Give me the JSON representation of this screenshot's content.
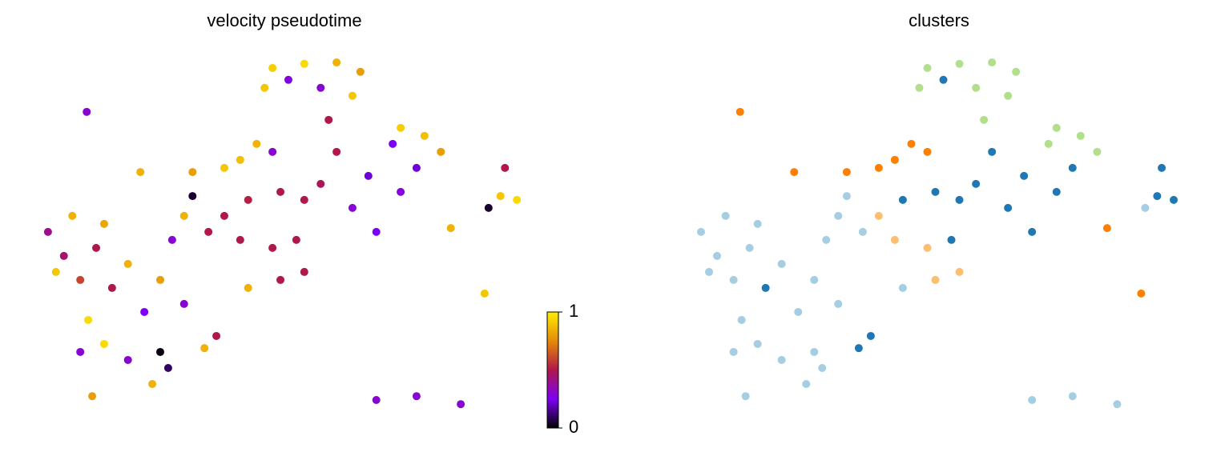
{
  "chart_data": [
    {
      "type": "scatter",
      "title": "velocity pseudotime",
      "x": [
        47.6,
        54.0,
        60.5,
        65.3,
        46.0,
        63.7,
        57.3,
        50.8,
        73.4,
        78.2,
        81.5,
        71.8,
        76.6,
        73.4,
        68.5,
        63.7,
        66.9,
        58.9,
        60.5,
        57.3,
        54.0,
        49.2,
        42.7,
        37.9,
        41.1,
        47.6,
        52.4,
        49.2,
        54.0,
        34.7,
        44.4,
        41.1,
        47.6,
        37.9,
        94.4,
        96.8,
        93.5,
        91.1,
        10.2,
        21.0,
        31.5,
        2.4,
        7.3,
        13.7,
        5.6,
        12.1,
        18.5,
        25.0,
        29.8,
        21.8,
        15.3,
        8.9,
        4.0,
        10.5,
        13.7,
        8.9,
        18.5,
        26.6,
        23.4,
        11.3,
        29.8,
        27.4,
        36.3,
        33.9,
        42.7,
        68.5,
        76.6,
        85.5,
        90.3,
        83.5,
        31.5,
        25.0
      ],
      "y": [
        97.7,
        98.9,
        99.3,
        96.6,
        92.0,
        89.7,
        92.0,
        94.3,
        80.5,
        78.2,
        73.6,
        75.9,
        69.0,
        62.1,
        50.6,
        57.5,
        66.7,
        82.8,
        73.6,
        64.4,
        59.8,
        62.1,
        59.8,
        55.2,
        48.3,
        46.0,
        48.3,
        36.8,
        39.1,
        50.6,
        75.9,
        71.3,
        73.6,
        69.0,
        69.0,
        59.8,
        60.9,
        57.5,
        85.1,
        67.8,
        67.8,
        50.6,
        55.2,
        52.9,
        43.7,
        46.0,
        41.4,
        36.8,
        29.9,
        27.6,
        34.5,
        36.8,
        39.1,
        25.3,
        18.4,
        16.1,
        13.8,
        11.5,
        6.9,
        3.4,
        55.2,
        48.3,
        20.7,
        17.2,
        34.5,
        2.3,
        3.4,
        1.1,
        32.9,
        51.7,
        60.9,
        16.1
      ],
      "values": [
        0.92,
        0.95,
        0.85,
        0.8,
        0.9,
        0.9,
        0.3,
        0.28,
        0.92,
        0.88,
        0.8,
        0.25,
        0.22,
        0.28,
        0.25,
        0.3,
        0.22,
        0.5,
        0.5,
        0.48,
        0.5,
        0.5,
        0.52,
        0.5,
        0.5,
        0.5,
        0.5,
        0.5,
        0.5,
        0.5,
        0.85,
        0.88,
        0.3,
        0.9,
        0.5,
        0.95,
        0.9,
        0.05,
        0.3,
        0.85,
        0.8,
        0.4,
        0.85,
        0.82,
        0.45,
        0.5,
        0.85,
        0.8,
        0.3,
        0.25,
        0.5,
        0.6,
        0.9,
        0.95,
        0.95,
        0.3,
        0.3,
        0.1,
        0.85,
        0.8,
        0.85,
        0.3,
        0.5,
        0.85,
        0.85,
        0.3,
        0.3,
        0.3,
        0.9,
        0.85,
        0.05,
        0.02
      ],
      "xlim": [
        0,
        100
      ],
      "ylim": [
        0,
        100
      ],
      "clim": [
        0,
        1
      ],
      "cticks": [
        0,
        1
      ],
      "colormap": [
        "#000000",
        "#7d00f5",
        "#b0174a",
        "#e58a08",
        "#ffee00"
      ]
    },
    {
      "type": "scatter",
      "title": "clusters",
      "x": [
        47.6,
        54.0,
        60.5,
        65.3,
        46.0,
        63.7,
        57.3,
        50.8,
        73.4,
        78.2,
        81.5,
        71.8,
        76.6,
        73.4,
        68.5,
        63.7,
        66.9,
        58.9,
        60.5,
        57.3,
        54.0,
        49.2,
        42.7,
        37.9,
        41.1,
        47.6,
        52.4,
        49.2,
        54.0,
        34.7,
        44.4,
        41.1,
        47.6,
        37.9,
        94.4,
        96.8,
        93.5,
        91.1,
        10.2,
        21.0,
        31.5,
        2.4,
        7.3,
        13.7,
        5.6,
        12.1,
        18.5,
        25.0,
        29.8,
        21.8,
        15.3,
        8.9,
        4.0,
        10.5,
        13.7,
        8.9,
        18.5,
        26.6,
        23.4,
        11.3,
        29.8,
        27.4,
        36.3,
        33.9,
        42.7,
        68.5,
        76.6,
        85.5,
        90.3,
        83.5,
        31.5,
        25.0
      ],
      "y": [
        97.7,
        98.9,
        99.3,
        96.6,
        92.0,
        89.7,
        92.0,
        94.3,
        80.5,
        78.2,
        73.6,
        75.9,
        69.0,
        62.1,
        50.6,
        57.5,
        66.7,
        82.8,
        73.6,
        64.4,
        59.8,
        62.1,
        59.8,
        55.2,
        48.3,
        46.0,
        48.3,
        36.8,
        39.1,
        50.6,
        75.9,
        71.3,
        73.6,
        69.0,
        69.0,
        59.8,
        60.9,
        57.5,
        85.1,
        67.8,
        67.8,
        50.6,
        55.2,
        52.9,
        43.7,
        46.0,
        41.4,
        36.8,
        29.9,
        27.6,
        34.5,
        36.8,
        39.1,
        25.3,
        18.4,
        16.1,
        13.8,
        11.5,
        6.9,
        3.4,
        55.2,
        48.3,
        20.7,
        17.2,
        34.5,
        2.3,
        3.4,
        1.1,
        32.9,
        51.7,
        60.9,
        16.1
      ],
      "colors": [
        "#b2df8a",
        "#b2df8a",
        "#b2df8a",
        "#b2df8a",
        "#b2df8a",
        "#b2df8a",
        "#b2df8a",
        "#1f78b4",
        "#b2df8a",
        "#b2df8a",
        "#b2df8a",
        "#b2df8a",
        "#1f78b4",
        "#1f78b4",
        "#1f78b4",
        "#1f78b4",
        "#1f78b4",
        "#b2df8a",
        "#1f78b4",
        "#1f78b4",
        "#1f78b4",
        "#1f78b4",
        "#1f78b4",
        "#fdbf6f",
        "#fdbf6f",
        "#fdbf6f",
        "#1f78b4",
        "#fdbf6f",
        "#fdbf6f",
        "#a6cee3",
        "#ff7f00",
        "#ff7f00",
        "#ff7f00",
        "#ff7f00",
        "#1f78b4",
        "#1f78b4",
        "#1f78b4",
        "#a6cee3",
        "#ff7f00",
        "#ff7f00",
        "#ff7f00",
        "#a6cee3",
        "#a6cee3",
        "#a6cee3",
        "#a6cee3",
        "#a6cee3",
        "#a6cee3",
        "#a6cee3",
        "#a6cee3",
        "#a6cee3",
        "#1f78b4",
        "#a6cee3",
        "#a6cee3",
        "#a6cee3",
        "#a6cee3",
        "#a6cee3",
        "#a6cee3",
        "#a6cee3",
        "#a6cee3",
        "#a6cee3",
        "#a6cee3",
        "#a6cee3",
        "#1f78b4",
        "#1f78b4",
        "#a6cee3",
        "#a6cee3",
        "#a6cee3",
        "#a6cee3",
        "#ff7f00",
        "#ff7f00",
        "#a6cee3",
        "#a6cee3"
      ],
      "xlim": [
        0,
        100
      ],
      "ylim": [
        0,
        100
      ]
    }
  ]
}
